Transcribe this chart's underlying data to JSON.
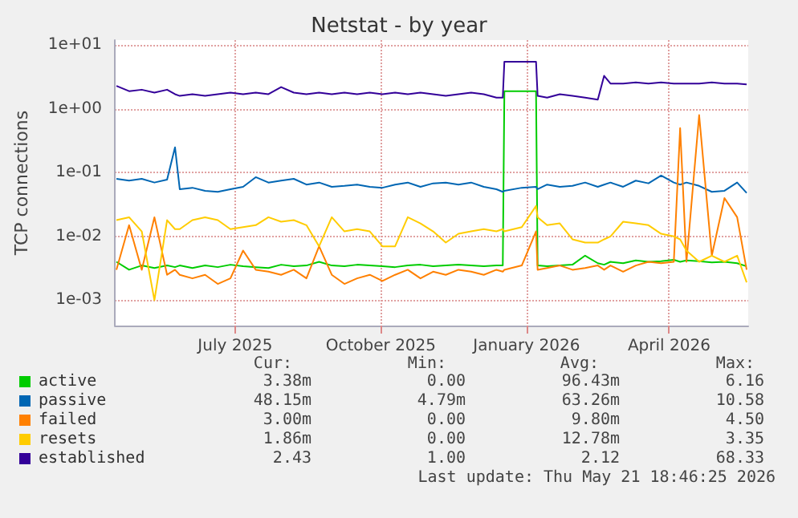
{
  "chart_data": {
    "type": "line",
    "title": "Netstat - by year",
    "ylabel": "TCP connections",
    "x": [
      "2025-04-17",
      "2025-04-25",
      "2025-05-03",
      "2025-05-11",
      "2025-05-19",
      "2025-05-24",
      "2025-05-27",
      "2025-06-04",
      "2025-06-12",
      "2025-06-20",
      "2025-06-28",
      "2025-07-06",
      "2025-07-14",
      "2025-07-22",
      "2025-07-30",
      "2025-08-07",
      "2025-08-15",
      "2025-08-23",
      "2025-08-31",
      "2025-09-08",
      "2025-09-16",
      "2025-09-24",
      "2025-10-02",
      "2025-10-10",
      "2025-10-18",
      "2025-10-26",
      "2025-11-03",
      "2025-11-11",
      "2025-11-19",
      "2025-11-27",
      "2025-12-05",
      "2025-12-13",
      "2025-12-17",
      "2025-12-18",
      "2025-12-29",
      "2026-01-07",
      "2026-01-08",
      "2026-01-14",
      "2026-01-22",
      "2026-01-30",
      "2026-02-07",
      "2026-02-15",
      "2026-02-19",
      "2026-02-23",
      "2026-03-03",
      "2026-03-11",
      "2026-03-19",
      "2026-03-27",
      "2026-04-04",
      "2026-04-08",
      "2026-04-12",
      "2026-04-20",
      "2026-04-28",
      "2026-05-06",
      "2026-05-14",
      "2026-05-20"
    ],
    "series": [
      {
        "name": "active",
        "color": "#00cc00",
        "values": [
          0.004,
          0.003,
          0.0035,
          0.0032,
          0.0035,
          0.0033,
          0.0035,
          0.0032,
          0.0035,
          0.0033,
          0.0036,
          0.0034,
          0.0033,
          0.0032,
          0.0036,
          0.0034,
          0.0035,
          0.004,
          0.0035,
          0.0034,
          0.0036,
          0.0035,
          0.0034,
          0.0033,
          0.0035,
          0.0036,
          0.0034,
          0.0035,
          0.0036,
          0.0035,
          0.0034,
          0.0035,
          0.0035,
          1.9,
          1.9,
          1.9,
          0.0035,
          0.0034,
          0.0035,
          0.0036,
          0.005,
          0.0038,
          0.0036,
          0.004,
          0.0038,
          0.0042,
          0.004,
          0.0041,
          0.0043,
          0.004,
          0.0042,
          0.0041,
          0.0039,
          0.004,
          0.0038,
          0.0034
        ]
      },
      {
        "name": "passive",
        "color": "#0066b3",
        "values": [
          0.08,
          0.075,
          0.08,
          0.07,
          0.078,
          0.25,
          0.055,
          0.058,
          0.052,
          0.05,
          0.055,
          0.06,
          0.085,
          0.07,
          0.075,
          0.08,
          0.065,
          0.07,
          0.06,
          0.062,
          0.065,
          0.06,
          0.058,
          0.065,
          0.07,
          0.06,
          0.068,
          0.07,
          0.065,
          0.07,
          0.06,
          0.055,
          0.05,
          0.052,
          0.058,
          0.06,
          0.055,
          0.065,
          0.06,
          0.062,
          0.07,
          0.06,
          0.065,
          0.07,
          0.06,
          0.075,
          0.068,
          0.09,
          0.07,
          0.065,
          0.07,
          0.062,
          0.05,
          0.052,
          0.07,
          0.048
        ]
      },
      {
        "name": "failed",
        "color": "#ff8000",
        "values": [
          0.003,
          0.015,
          0.003,
          0.02,
          0.0025,
          0.003,
          0.0025,
          0.0022,
          0.0025,
          0.0018,
          0.0022,
          0.006,
          0.003,
          0.0028,
          0.0025,
          0.003,
          0.0022,
          0.007,
          0.0025,
          0.0018,
          0.0022,
          0.0025,
          0.002,
          0.0025,
          0.003,
          0.0022,
          0.0028,
          0.0025,
          0.003,
          0.0028,
          0.0025,
          0.003,
          0.0028,
          0.003,
          0.0035,
          0.012,
          0.003,
          0.0032,
          0.0035,
          0.003,
          0.0032,
          0.0035,
          0.003,
          0.0035,
          0.0028,
          0.0035,
          0.004,
          0.0038,
          0.004,
          0.5,
          0.004,
          0.8,
          0.005,
          0.04,
          0.02,
          0.003
        ]
      },
      {
        "name": "resets",
        "color": "#ffcc00",
        "values": [
          0.018,
          0.02,
          0.012,
          0.001,
          0.018,
          0.013,
          0.013,
          0.018,
          0.02,
          0.018,
          0.013,
          0.014,
          0.015,
          0.02,
          0.017,
          0.018,
          0.015,
          0.007,
          0.02,
          0.012,
          0.013,
          0.012,
          0.007,
          0.007,
          0.02,
          0.016,
          0.012,
          0.008,
          0.011,
          0.012,
          0.013,
          0.012,
          0.013,
          0.012,
          0.014,
          0.03,
          0.02,
          0.015,
          0.016,
          0.009,
          0.008,
          0.008,
          0.009,
          0.01,
          0.017,
          0.016,
          0.015,
          0.011,
          0.01,
          0.009,
          0.006,
          0.004,
          0.005,
          0.004,
          0.005,
          0.0019
        ]
      },
      {
        "name": "established",
        "color": "#330099",
        "values": [
          2.3,
          1.9,
          2.0,
          1.8,
          2.0,
          1.7,
          1.6,
          1.7,
          1.6,
          1.7,
          1.8,
          1.7,
          1.8,
          1.7,
          2.2,
          1.8,
          1.7,
          1.8,
          1.7,
          1.8,
          1.7,
          1.8,
          1.7,
          1.8,
          1.7,
          1.8,
          1.7,
          1.6,
          1.7,
          1.8,
          1.7,
          1.5,
          1.5,
          5.5,
          5.5,
          5.5,
          1.6,
          1.5,
          1.7,
          1.6,
          1.5,
          1.4,
          3.3,
          2.5,
          2.5,
          2.6,
          2.5,
          2.6,
          2.5,
          2.5,
          2.5,
          2.5,
          2.6,
          2.5,
          2.5,
          2.43
        ]
      }
    ],
    "log": true,
    "grid": true,
    "legend": "bottom left",
    "marker": "none",
    "line_style": "solid",
    "xlim": [
      "2025-04-16",
      "2026-05-21"
    ],
    "xticks": [
      {
        "value": "2025-07-01",
        "label": "July 2025"
      },
      {
        "value": "2025-10-01",
        "label": "October 2025"
      },
      {
        "value": "2026-01-01",
        "label": "January 2026"
      },
      {
        "value": "2026-04-01",
        "label": "April 2026"
      }
    ],
    "ylim": [
      0.0004,
      12
    ],
    "yticks": [
      {
        "value": 0.001,
        "label": "1e-03"
      },
      {
        "value": 0.01,
        "label": "1e-02"
      },
      {
        "value": 0.1,
        "label": "1e-01"
      },
      {
        "value": 1,
        "label": "1e+00"
      },
      {
        "value": 10,
        "label": "1e+01"
      }
    ],
    "annotations": [
      "Cur:",
      "Min:",
      "Avg:",
      "Max:",
      "3.38m",
      "0.00",
      "96.43m",
      "6.16",
      "48.15m",
      "4.79m",
      "63.26m",
      "10.58",
      "3.00m",
      "0.00",
      "9.80m",
      "4.50",
      "1.86m",
      "0.00",
      "12.78m",
      "3.35",
      "2.43",
      "1.00",
      "2.12",
      "68.33",
      "Last update: Thu May 21 18:46:25 2026"
    ]
  }
}
